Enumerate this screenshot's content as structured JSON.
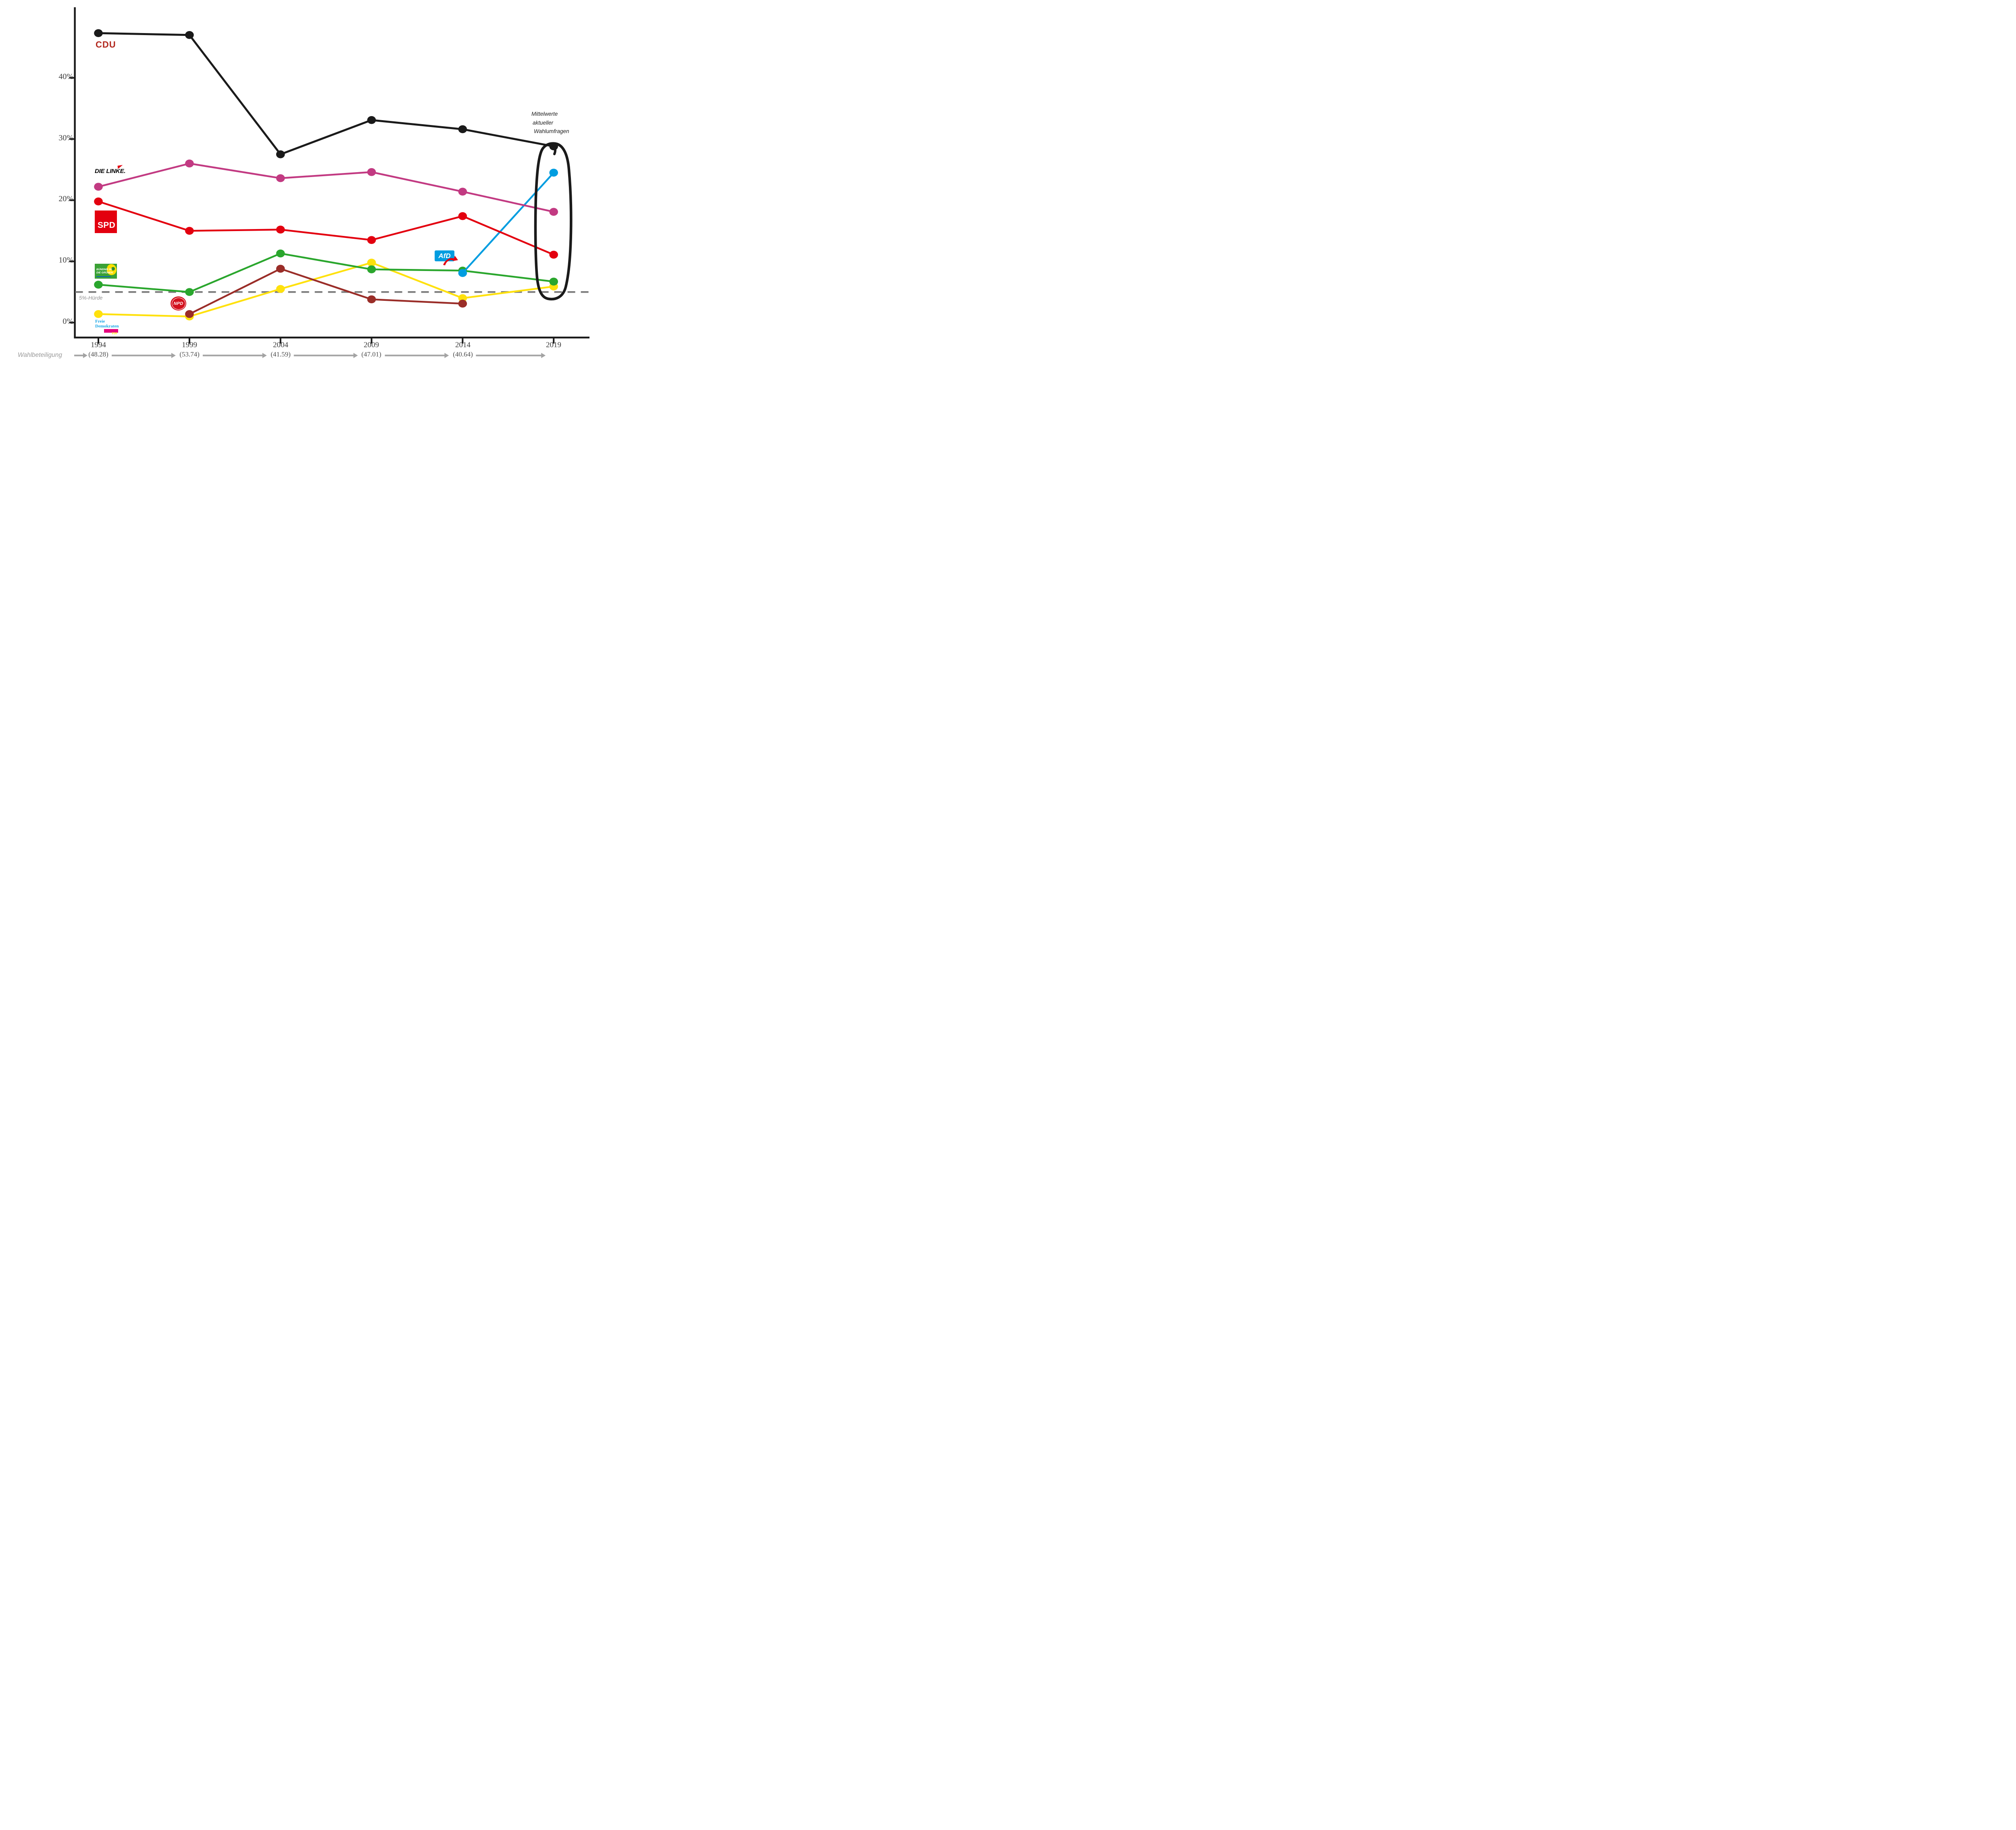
{
  "chart_data": {
    "type": "line",
    "x": [
      1994,
      1999,
      2004,
      2009,
      2014,
      2019
    ],
    "series": [
      {
        "name": "CDU",
        "color": "#1a1a1a",
        "values": [
          47.3,
          47.0,
          27.5,
          33.1,
          31.6,
          28.8
        ]
      },
      {
        "name": "DIE LINKE",
        "color": "#c23a82",
        "values": [
          22.2,
          26.0,
          23.6,
          24.6,
          21.4,
          18.1
        ]
      },
      {
        "name": "SPD",
        "color": "#e3000f",
        "values": [
          19.8,
          15.0,
          15.2,
          13.5,
          17.4,
          11.1
        ]
      },
      {
        "name": "BÜNDNIS 90/DIE GRÜNEN",
        "color": "#2aa62d",
        "values": [
          6.2,
          5.0,
          11.3,
          8.7,
          8.5,
          6.7
        ]
      },
      {
        "name": "FDP",
        "color": "#ffe10d",
        "values": [
          1.4,
          1.0,
          5.5,
          9.8,
          4.0,
          5.9
        ]
      },
      {
        "name": "NPD",
        "color": "#9a2d28",
        "values": [
          null,
          1.4,
          8.8,
          3.8,
          3.1,
          null
        ]
      },
      {
        "name": "AfD",
        "color": "#009de0",
        "values": [
          null,
          null,
          null,
          null,
          8.1,
          24.5
        ]
      }
    ],
    "ylim": [
      0,
      50
    ],
    "yticks": [
      {
        "label": "40%",
        "value": 40
      },
      {
        "label": "30%",
        "value": 30
      },
      {
        "label": "20%",
        "value": 20
      },
      {
        "label": "10%",
        "value": 10
      },
      {
        "label": "0%",
        "value": 0
      }
    ],
    "threshold": {
      "value": 5,
      "label": "5%-Hürde"
    },
    "grid": false,
    "legend_position": "none",
    "last_column_note": "poll averages, circled by hand"
  },
  "annotation": {
    "lines": [
      "Mittelwerte",
      "aktueller",
      "Wahlumfragen"
    ]
  },
  "turnout": {
    "label": "Wahlbeteiligung",
    "values": [
      "(48.28)",
      "(53.74)",
      "(41.59)",
      "(47.01)",
      "(40.64)"
    ]
  },
  "logos": {
    "cdu": "CDU",
    "linke": "DIE LINKE.",
    "spd": "SPD",
    "gruene_line1": "BÜNDNIS 90",
    "gruene_line2": "DIE GRÜNEN",
    "npd": "NPD",
    "fdp_line1": "Freie",
    "fdp_line2": "Demokraten",
    "fdp_abbr": "FDP",
    "afd": "AfD"
  }
}
